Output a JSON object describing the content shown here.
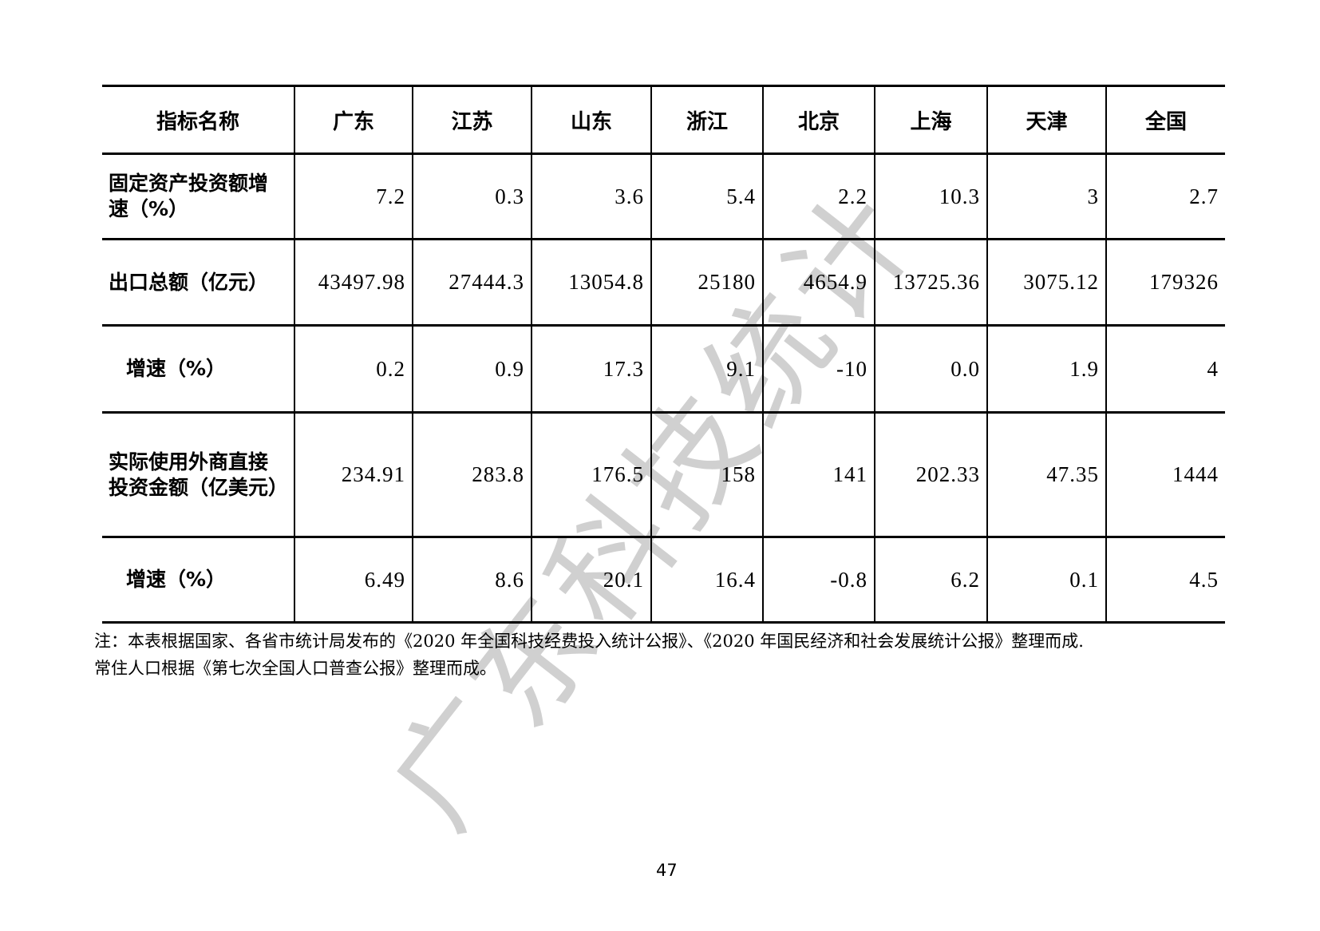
{
  "table": {
    "headers": [
      "指标名称",
      "广东",
      "江苏",
      "山东",
      "浙江",
      "北京",
      "上海",
      "天津",
      "全国"
    ],
    "rows": [
      {
        "label": "固定资产投资额增速（%）",
        "indent": false,
        "values": [
          "7.2",
          "0.3",
          "3.6",
          "5.4",
          "2.2",
          "10.3",
          "3",
          "2.7"
        ]
      },
      {
        "label": "出口总额（亿元）",
        "indent": false,
        "values": [
          "43497.98",
          "27444.3",
          "13054.8",
          "25180",
          "4654.9",
          "13725.36",
          "3075.12",
          "179326"
        ]
      },
      {
        "label": "增速（%）",
        "indent": true,
        "values": [
          "0.2",
          "0.9",
          "17.3",
          "9.1",
          "-10",
          "0.0",
          "1.9",
          "4"
        ]
      },
      {
        "label": "实际使用外商直接投资金额（亿美元）",
        "indent": false,
        "values": [
          "234.91",
          "283.8",
          "176.5",
          "158",
          "141",
          "202.33",
          "47.35",
          "1444"
        ]
      },
      {
        "label": "增速（%）",
        "indent": true,
        "values": [
          "6.49",
          "8.6",
          "20.1",
          "16.4",
          "-0.8",
          "6.2",
          "0.1",
          "4.5"
        ]
      }
    ]
  },
  "footnote": {
    "line1": "注：本表根据国家、各省市统计局发布的《2020 年全国科技经费投入统计公报》、《2020 年国民经济和社会发展统计公报》整理而成.",
    "line2": "常住人口根据《第七次全国人口普查公报》整理而成。"
  },
  "page_number": "47",
  "watermark": "广东科技统计"
}
